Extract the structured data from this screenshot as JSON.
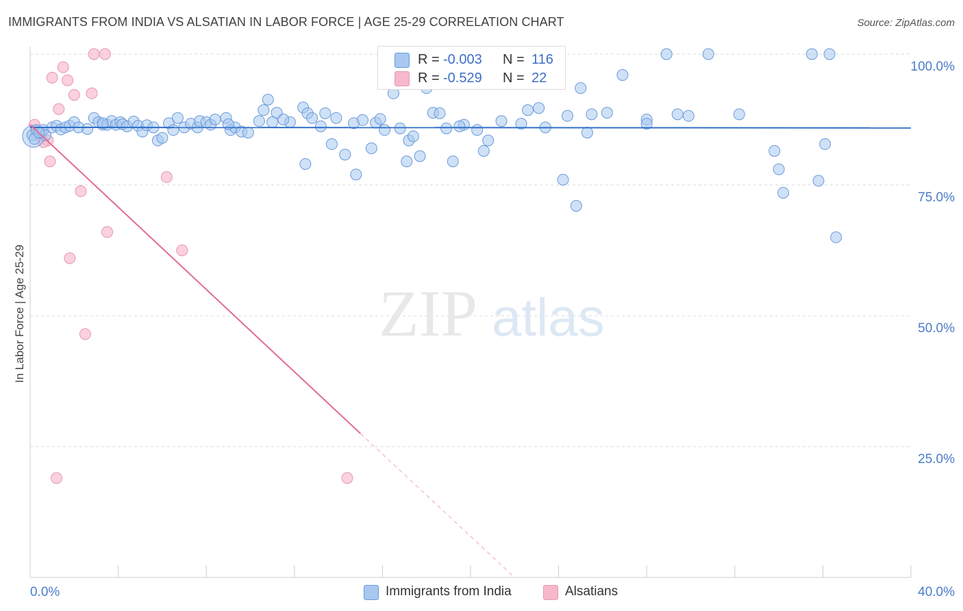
{
  "header": {
    "title": "IMMIGRANTS FROM INDIA VS ALSATIAN IN LABOR FORCE | AGE 25-29 CORRELATION CHART",
    "source": "Source: ZipAtlas.com"
  },
  "watermark": {
    "zip": "ZIP",
    "atlas": "atlas"
  },
  "stats": {
    "rows": [
      {
        "r_label": "R =",
        "r_value": "-0.003",
        "n_label": "N =",
        "n_value": "116",
        "color": "#a8c8f0"
      },
      {
        "r_label": "R =",
        "r_value": "-0.529",
        "n_label": "N =",
        "n_value": "22",
        "color": "#f7b8cb"
      }
    ]
  },
  "legend": {
    "items": [
      {
        "label": "Immigrants from India",
        "color": "#a8c8f0"
      },
      {
        "label": "Alsatians",
        "color": "#f7b8cb"
      }
    ]
  },
  "colors": {
    "blue_fill": "#a8c8f0",
    "blue_stroke": "#6a9ad8",
    "blue_line": "#2f6fc7",
    "pink_fill": "#f7b8cb",
    "pink_stroke": "#e597b0",
    "pink_line": "#e06b97",
    "grid": "#d8d8d8",
    "tick_text": "#4a7cc9"
  },
  "chart_data": {
    "type": "scatter",
    "title": "IMMIGRANTS FROM INDIA VS ALSATIAN IN LABOR FORCE | AGE 25-29 CORRELATION CHART",
    "xlabel": "",
    "ylabel": "In Labor Force | Age 25-29",
    "xlim": [
      0,
      40
    ],
    "ylim": [
      0,
      102
    ],
    "x_tick_labels": [
      "0.0%",
      "40.0%"
    ],
    "y_ticks": [
      25,
      50,
      75,
      100
    ],
    "y_tick_labels": [
      "25.0%",
      "50.0%",
      "75.0%",
      "100.0%"
    ],
    "grid": true,
    "legend_position": "bottom-center",
    "series": [
      {
        "name": "Immigrants from India",
        "r": -0.003,
        "n": 116,
        "trend": {
          "x": [
            0,
            40
          ],
          "y": [
            86.0,
            85.9
          ],
          "style": "solid"
        },
        "points": [
          [
            0.1,
            84.5
          ],
          [
            0.3,
            85.5
          ],
          [
            0.5,
            85.0
          ],
          [
            0.6,
            85.5
          ],
          [
            0.7,
            84.5
          ],
          [
            1.0,
            86.0
          ],
          [
            1.2,
            86.3
          ],
          [
            1.4,
            85.6
          ],
          [
            1.6,
            86.0
          ],
          [
            1.8,
            86.3
          ],
          [
            2.0,
            87.0
          ],
          [
            2.2,
            86.0
          ],
          [
            2.6,
            85.7
          ],
          [
            2.9,
            87.8
          ],
          [
            3.1,
            87.0
          ],
          [
            3.3,
            86.5
          ],
          [
            3.5,
            86.5
          ],
          [
            3.7,
            87.2
          ],
          [
            3.9,
            86.5
          ],
          [
            4.1,
            87.0
          ],
          [
            4.2,
            86.6
          ],
          [
            4.4,
            86.2
          ],
          [
            4.7,
            87.1
          ],
          [
            4.9,
            86.3
          ],
          [
            5.1,
            85.2
          ],
          [
            5.3,
            86.4
          ],
          [
            5.6,
            86.0
          ],
          [
            5.8,
            83.5
          ],
          [
            6.0,
            84.0
          ],
          [
            6.3,
            86.8
          ],
          [
            6.5,
            85.5
          ],
          [
            6.7,
            87.8
          ],
          [
            7.0,
            86.0
          ],
          [
            7.3,
            86.7
          ],
          [
            7.6,
            86.0
          ],
          [
            7.7,
            87.2
          ],
          [
            8.0,
            87.0
          ],
          [
            8.2,
            86.5
          ],
          [
            8.4,
            87.5
          ],
          [
            8.9,
            87.8
          ],
          [
            9.1,
            85.5
          ],
          [
            9.3,
            86.0
          ],
          [
            9.6,
            85.2
          ],
          [
            9.9,
            85.0
          ],
          [
            10.4,
            87.2
          ],
          [
            10.8,
            91.3
          ],
          [
            10.6,
            89.3
          ],
          [
            11.2,
            88.8
          ],
          [
            11.0,
            87.0
          ],
          [
            11.8,
            87.0
          ],
          [
            12.4,
            89.8
          ],
          [
            12.6,
            88.7
          ],
          [
            12.8,
            87.8
          ],
          [
            13.2,
            86.2
          ],
          [
            13.4,
            88.7
          ],
          [
            12.5,
            79.0
          ],
          [
            13.7,
            82.8
          ],
          [
            13.9,
            87.8
          ],
          [
            14.3,
            80.8
          ],
          [
            14.7,
            86.8
          ],
          [
            14.8,
            77.0
          ],
          [
            15.1,
            87.4
          ],
          [
            15.5,
            82.0
          ],
          [
            15.7,
            86.9
          ],
          [
            15.9,
            87.6
          ],
          [
            16.1,
            85.5
          ],
          [
            16.5,
            92.5
          ],
          [
            16.8,
            85.8
          ],
          [
            17.1,
            79.5
          ],
          [
            17.2,
            83.5
          ],
          [
            17.4,
            84.3
          ],
          [
            17.7,
            80.5
          ],
          [
            17.9,
            100.0
          ],
          [
            18.0,
            93.5
          ],
          [
            18.3,
            88.8
          ],
          [
            18.6,
            88.7
          ],
          [
            18.9,
            85.8
          ],
          [
            19.2,
            79.5
          ],
          [
            19.7,
            86.5
          ],
          [
            20.3,
            85.5
          ],
          [
            20.6,
            81.5
          ],
          [
            20.8,
            83.5
          ],
          [
            21.4,
            87.2
          ],
          [
            22.3,
            86.7
          ],
          [
            22.6,
            89.3
          ],
          [
            23.1,
            89.7
          ],
          [
            23.4,
            86.0
          ],
          [
            24.2,
            76.0
          ],
          [
            24.4,
            88.2
          ],
          [
            24.8,
            71.0
          ],
          [
            25.0,
            93.5
          ],
          [
            25.3,
            85.0
          ],
          [
            25.5,
            88.5
          ],
          [
            26.2,
            88.8
          ],
          [
            26.9,
            96.0
          ],
          [
            28.0,
            87.5
          ],
          [
            28.9,
            100.0
          ],
          [
            29.4,
            88.5
          ],
          [
            29.9,
            88.2
          ],
          [
            30.8,
            100.0
          ],
          [
            32.2,
            88.5
          ],
          [
            33.8,
            81.5
          ],
          [
            34.0,
            78.0
          ],
          [
            34.2,
            73.5
          ],
          [
            35.5,
            100.0
          ],
          [
            36.3,
            100.0
          ],
          [
            35.8,
            75.8
          ],
          [
            36.1,
            82.8
          ],
          [
            36.6,
            65.0
          ],
          [
            0.2,
            83.8
          ],
          [
            0.4,
            85.0
          ],
          [
            3.3,
            86.8
          ],
          [
            11.5,
            87.5
          ],
          [
            19.5,
            86.2
          ],
          [
            28.0,
            86.7
          ],
          [
            9.0,
            86.6
          ]
        ]
      },
      {
        "name": "Alsatians",
        "r": -0.529,
        "n": 22,
        "trend": {
          "x": [
            0,
            15.0,
            22.0
          ],
          "y": [
            86.5,
            27.5,
            0.0
          ],
          "solid_until_x": 15.0
        },
        "points": [
          [
            0.2,
            86.5
          ],
          [
            0.5,
            84.0
          ],
          [
            0.8,
            83.5
          ],
          [
            0.9,
            79.5
          ],
          [
            1.0,
            95.5
          ],
          [
            1.3,
            89.5
          ],
          [
            1.5,
            97.5
          ],
          [
            1.7,
            95.0
          ],
          [
            2.0,
            92.2
          ],
          [
            2.3,
            73.8
          ],
          [
            1.8,
            61.0
          ],
          [
            2.5,
            46.5
          ],
          [
            2.8,
            92.5
          ],
          [
            2.9,
            100.0
          ],
          [
            3.4,
            100.0
          ],
          [
            3.5,
            66.0
          ],
          [
            6.2,
            76.5
          ],
          [
            6.9,
            62.5
          ],
          [
            1.2,
            19.0
          ],
          [
            14.4,
            19.0
          ],
          [
            0.3,
            84.8
          ],
          [
            0.6,
            83.2
          ]
        ]
      }
    ]
  }
}
